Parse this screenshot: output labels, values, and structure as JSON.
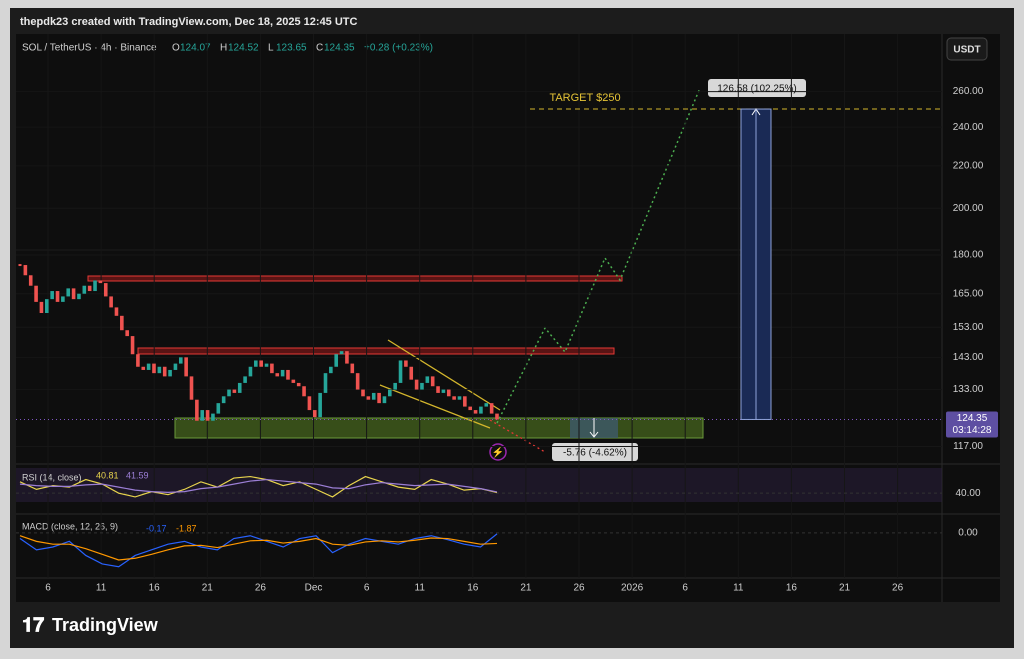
{
  "header": "thepdk23 created with TradingView.com, Dec 18, 2025 12:45 UTC",
  "chart_data": {
    "type": "candlestick",
    "symbol": "SOL / TetherUS · 4h · Binance",
    "ohlc": [
      {
        "label": "O",
        "value": "124.07"
      },
      {
        "label": "H",
        "value": "124.52"
      },
      {
        "label": "L",
        "value": "123.65"
      },
      {
        "label": "C",
        "value": "124.35"
      }
    ],
    "change": "+0.28 (+0.23%)",
    "currency": "USDT",
    "log_scale": true,
    "closes": [
      176,
      172,
      168,
      162,
      158,
      163,
      166,
      162,
      164,
      167,
      163,
      165,
      168,
      166,
      170,
      169,
      164,
      160,
      157,
      152,
      150,
      144,
      140,
      139,
      141,
      138,
      140,
      137,
      139,
      141,
      143,
      137,
      130,
      124,
      127,
      124,
      126,
      129,
      131,
      133,
      132,
      135,
      137,
      140,
      142,
      140,
      141,
      138,
      137,
      139,
      136,
      135,
      134,
      131,
      127,
      125,
      132,
      138,
      140,
      144,
      145,
      141,
      138,
      133,
      131,
      130,
      132,
      129,
      131,
      133,
      135,
      142,
      140,
      136,
      133,
      135,
      137,
      134,
      132,
      133,
      131,
      130,
      131,
      128,
      127,
      126,
      128,
      129,
      126,
      124.35
    ],
    "up_color": "#26a69a",
    "down_color": "#ef5350",
    "ylim": [
      113,
      292
    ],
    "yticks": [
      {
        "value": 260,
        "label": "260.00"
      },
      {
        "value": 240,
        "label": "240.00"
      },
      {
        "value": 220,
        "label": "220.00"
      },
      {
        "value": 200,
        "label": "200.00"
      },
      {
        "value": 180,
        "label": "180.00"
      },
      {
        "value": 165,
        "label": "165.00"
      },
      {
        "value": 153,
        "label": "153.00"
      },
      {
        "value": 143,
        "label": "143.00"
      },
      {
        "value": 133,
        "label": "133.00"
      },
      {
        "value": 117,
        "label": "117.00"
      }
    ],
    "last_price": 124.35,
    "countdown": "03:14:28",
    "target": {
      "value": 250,
      "label": "TARGET $250"
    },
    "long_measure": "126.58 (102.25%)",
    "short_measure": "-5.76 (-4.62%)",
    "x_tick_labels": [
      "6",
      "11",
      "16",
      "21",
      "26",
      "Dec",
      "6",
      "11",
      "16",
      "21",
      "26",
      "2026",
      "6",
      "11",
      "16",
      "21",
      "26"
    ],
    "rsi": {
      "title": "RSI (14, close)",
      "ylim": [
        15,
        76
      ],
      "yticks": [
        {
          "value": 40,
          "label": "40.00"
        }
      ],
      "series": [
        {
          "name": "40.81",
          "color": "#e8d44d",
          "values": [
            55,
            45,
            50,
            48,
            58,
            52,
            40,
            35,
            42,
            38,
            45,
            55,
            48,
            60,
            62,
            58,
            50,
            55,
            45,
            35,
            50,
            62,
            55,
            48,
            45,
            58,
            52,
            44,
            46,
            40.81
          ]
        },
        {
          "name": "41.59",
          "color": "#9c7fd6",
          "values": [
            52,
            50,
            49,
            49,
            51,
            52,
            48,
            44,
            42,
            41,
            42,
            46,
            48,
            52,
            56,
            58,
            56,
            54,
            52,
            47,
            46,
            51,
            54,
            52,
            50,
            51,
            52,
            49,
            46,
            41.59
          ]
        }
      ]
    },
    "macd": {
      "title": "MACD (close, 12, 26, 9)",
      "ylim": [
        -8,
        3
      ],
      "yticks": [
        {
          "value": 0,
          "label": "0.00"
        }
      ],
      "series": [
        {
          "name": "-0.17",
          "color": "#2962ff",
          "values": [
            -1,
            -3,
            -2.5,
            -1.5,
            -4,
            -5.5,
            -6,
            -4,
            -3,
            -2,
            -1.5,
            -2.5,
            -3,
            -1,
            -0.5,
            -1.5,
            -2.5,
            -1,
            -0.5,
            -3.5,
            -2,
            -1,
            -1.5,
            -2,
            -1,
            -0.5,
            -1.2,
            -2,
            -2.5,
            -0.17
          ]
        },
        {
          "name": "-1.87",
          "color": "#ff9800",
          "values": [
            -0.5,
            -1.5,
            -2,
            -2,
            -2.8,
            -3.8,
            -4.8,
            -4.5,
            -3.8,
            -3,
            -2.3,
            -2.2,
            -2.6,
            -2,
            -1.4,
            -1.3,
            -1.8,
            -1.5,
            -1,
            -2,
            -2.2,
            -1.6,
            -1.4,
            -1.6,
            -1.3,
            -0.9,
            -1,
            -1.5,
            -2,
            -1.87
          ]
        }
      ]
    }
  },
  "footer": "TradingView"
}
